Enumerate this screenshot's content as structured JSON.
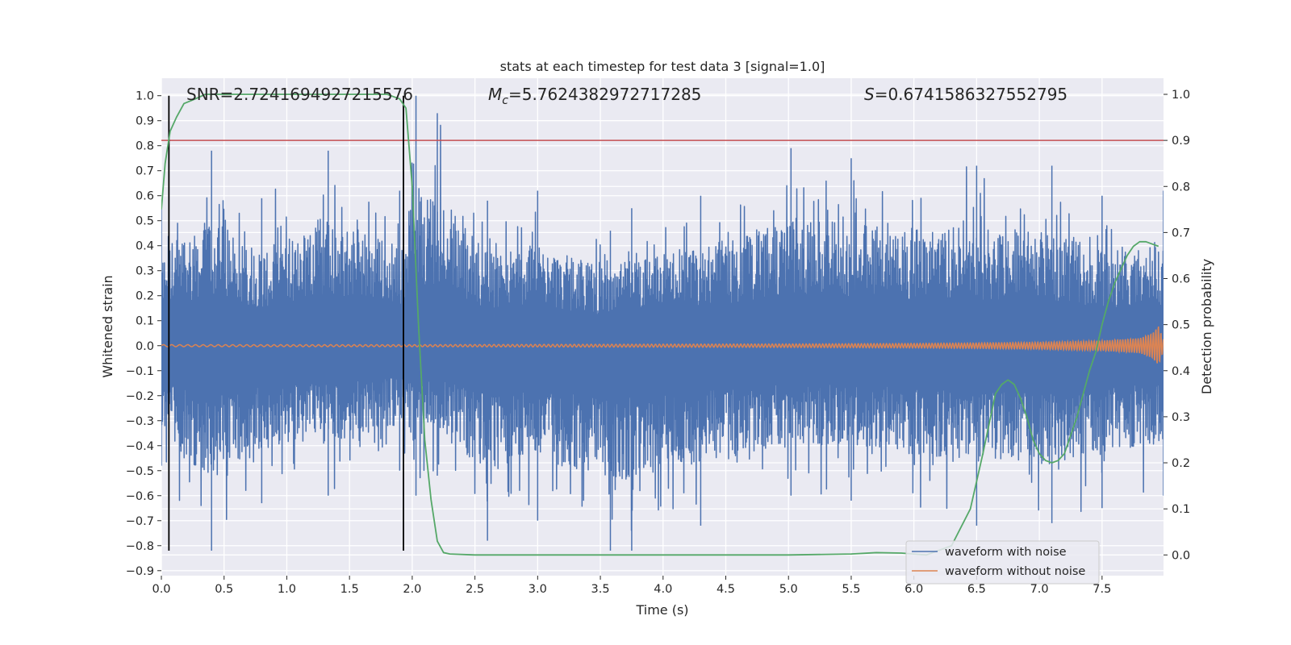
{
  "chart_data": {
    "type": "line",
    "title": "stats at each timestep for test data 3 [signal=1.0]",
    "xlabel": "Time (s)",
    "ylabel_left": "Whitened strain",
    "ylabel_right": "Detection probability",
    "xlim": [
      0.0,
      7.99
    ],
    "ylim_left": [
      -0.92,
      1.07
    ],
    "ylim_right": [
      -0.045,
      1.035
    ],
    "x_ticks": [
      "0.0",
      "0.5",
      "1.0",
      "1.5",
      "2.0",
      "2.5",
      "3.0",
      "3.5",
      "4.0",
      "4.5",
      "5.0",
      "5.5",
      "6.0",
      "6.5",
      "7.0",
      "7.5"
    ],
    "y_ticks_left": [
      "1.0",
      "0.9",
      "0.8",
      "0.7",
      "0.6",
      "0.5",
      "0.4",
      "0.3",
      "0.2",
      "0.1",
      "0.0",
      "−0.1",
      "−0.2",
      "−0.3",
      "−0.4",
      "−0.5",
      "−0.6",
      "−0.7",
      "−0.8",
      "−0.9"
    ],
    "y_ticks_right": [
      "1.0",
      "0.9",
      "0.8",
      "0.7",
      "0.6",
      "0.5",
      "0.4",
      "0.3",
      "0.2",
      "0.1",
      "0.0"
    ],
    "grid": true,
    "legend_position": "bottom-right",
    "annotations": {
      "snr": "SNR=2.7241694927215576",
      "mc_symbol": "M",
      "mc_sub": "c",
      "mc_value": "=5.7624382972717285",
      "s_symbol": "S",
      "s_value": "=0.6741586327552795"
    },
    "threshold_line": {
      "axis": "right",
      "value": 0.9,
      "color": "#c44e52"
    },
    "vertical_lines": {
      "x": [
        0.06,
        1.93
      ],
      "from": -0.82,
      "to": 1.0,
      "color": "#000000"
    },
    "series": [
      {
        "name": "waveform with noise",
        "axis": "left",
        "color": "#4c72b0",
        "note_envelope": "dense whitened noise, typical amplitude about ±0.4, peaks near ±0.8",
        "x": [
          0.0,
          0.06,
          0.4,
          0.8,
          1.33,
          1.9,
          2.03,
          2.2,
          2.6,
          3.0,
          3.58,
          3.75,
          4.3,
          5.02,
          5.5,
          6.5,
          7.1,
          7.5,
          7.99
        ],
        "upper": [
          0.55,
          0.64,
          0.78,
          0.59,
          0.78,
          0.62,
          1.0,
          0.93,
          0.58,
          0.62,
          0.46,
          0.55,
          0.6,
          0.79,
          0.75,
          0.72,
          0.72,
          0.6,
          0.62
        ],
        "lower": [
          -0.48,
          -0.62,
          -0.82,
          -0.63,
          -0.6,
          -0.5,
          -0.6,
          -0.52,
          -0.78,
          -0.7,
          -0.82,
          -0.82,
          -0.72,
          -0.6,
          -0.62,
          -0.72,
          -0.71,
          -0.65,
          -0.6
        ]
      },
      {
        "name": "waveform without noise",
        "axis": "left",
        "color": "#dd8452",
        "note_envelope": "chirp signal growing in amplitude toward the end",
        "x": [
          0.0,
          1.0,
          2.0,
          3.0,
          4.0,
          5.0,
          6.0,
          6.5,
          7.0,
          7.5,
          7.8,
          7.9,
          7.95,
          7.99
        ],
        "amplitude": [
          0.004,
          0.004,
          0.004,
          0.005,
          0.006,
          0.007,
          0.009,
          0.011,
          0.014,
          0.02,
          0.03,
          0.05,
          0.08,
          0.02
        ]
      },
      {
        "name": "detection probability",
        "axis": "right",
        "color": "#55a868",
        "x": [
          0.0,
          0.03,
          0.07,
          0.12,
          0.18,
          0.27,
          0.35,
          0.5,
          1.0,
          1.5,
          1.8,
          1.9,
          1.95,
          2.0,
          2.05,
          2.1,
          2.15,
          2.2,
          2.25,
          2.3,
          2.5,
          3.0,
          4.0,
          5.0,
          5.5,
          5.7,
          5.9,
          6.1,
          6.3,
          6.45,
          6.55,
          6.65,
          6.7,
          6.75,
          6.8,
          6.85,
          6.9,
          6.95,
          7.0,
          7.05,
          7.1,
          7.15,
          7.2,
          7.25,
          7.3,
          7.35,
          7.4,
          7.45,
          7.5,
          7.55,
          7.6,
          7.65,
          7.7,
          7.75,
          7.8,
          7.85,
          7.9,
          7.95
        ],
        "y": [
          0.75,
          0.85,
          0.92,
          0.95,
          0.98,
          0.99,
          1.0,
          1.0,
          1.0,
          1.0,
          1.0,
          0.99,
          0.97,
          0.8,
          0.5,
          0.25,
          0.12,
          0.03,
          0.005,
          0.002,
          0.0,
          0.0,
          0.0,
          0.0,
          0.002,
          0.005,
          0.004,
          0.0,
          0.02,
          0.1,
          0.22,
          0.35,
          0.37,
          0.38,
          0.37,
          0.34,
          0.3,
          0.25,
          0.22,
          0.205,
          0.2,
          0.205,
          0.22,
          0.26,
          0.3,
          0.35,
          0.4,
          0.44,
          0.5,
          0.55,
          0.59,
          0.62,
          0.65,
          0.67,
          0.68,
          0.68,
          0.675,
          0.67
        ]
      }
    ]
  },
  "legend": {
    "items": [
      {
        "label": "waveform with noise",
        "color": "#4c72b0"
      },
      {
        "label": "waveform without noise",
        "color": "#dd8452"
      }
    ]
  }
}
